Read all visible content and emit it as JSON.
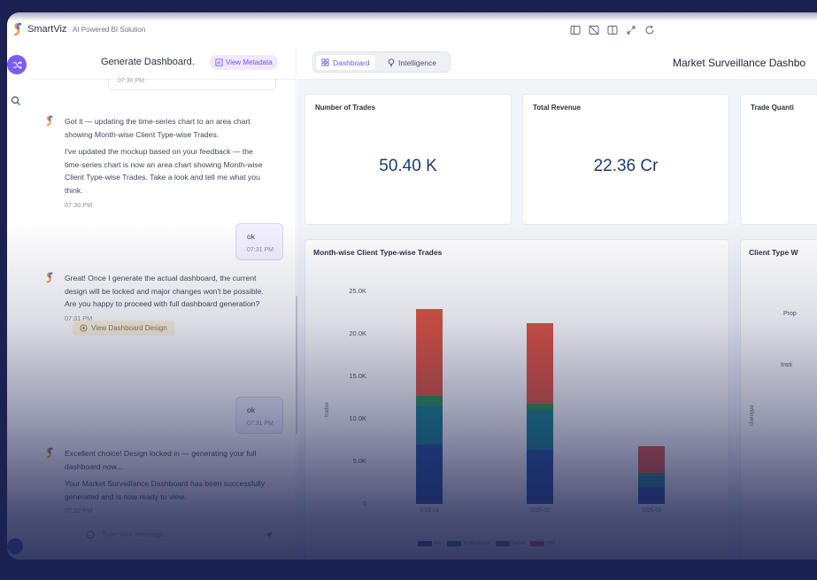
{
  "app": {
    "brand": "SmartViz",
    "tagline": "AI Powered BI Solution"
  },
  "window_icons": [
    "panel-left-icon",
    "panel-off-icon",
    "split-view-icon",
    "expand-icon",
    "refresh-icon"
  ],
  "chat": {
    "title": "Generate Dashboard.",
    "view_metadata_label": "View Metadata",
    "prev_time": "07:30 PM",
    "messages": {
      "m1_p1": "Got it — updating the time-series chart to an area chart showing Month-wise Client Type-wise Trades.",
      "m1_p2": "I've updated the mockup based on your feedback — the time-series chart is now an area chart showing Month-wise Client Type-wise Trades. Take a look and tell me what you think.",
      "m1_time": "07:30 PM",
      "u1_text": "ok",
      "u1_time": "07:31 PM",
      "m2_p1": "Great! Once I generate the actual dashboard, the current design will be locked and major changes won't be possible.",
      "m2_p2": "Are you happy to proceed with full dashboard generation?",
      "m2_time": "07:31 PM",
      "design_chip": "View Dashboard Design",
      "u2_text": "ok",
      "u2_time": "07:31 PM",
      "m3_p1": "Excellent choice! Design locked in — generating your full dashboard now...",
      "m3_p2": "Your Market Surveillance Dashboard has been successfully generated and is now ready to view.",
      "m3_time": "07:32 PM"
    },
    "input_placeholder": "Type your message..."
  },
  "main": {
    "tabs": {
      "dashboard": "Dashboard",
      "intelligence": "Intelligence"
    },
    "title": "Market Surveillance Dashbo",
    "kpis": {
      "trades_label": "Number of Trades",
      "trades_value": "50.40 K",
      "revenue_label": "Total Revenue",
      "revenue_value": "22.36 Cr",
      "quantity_label": "Trade Quanti"
    },
    "second_chart_title": "Client Type W",
    "second_chart_labels": [
      "Prop",
      "Insti"
    ],
    "second_chart_ylabel": "clientype"
  },
  "chart_data": {
    "type": "bar",
    "stacked": true,
    "title": "Month-wise Client Type-wise Trades",
    "ylabel": "trades",
    "ylim": [
      0,
      25000
    ],
    "yticks": [
      "0",
      "5.0K",
      "10.0K",
      "15.0K",
      "20.0K",
      "25.0K"
    ],
    "categories": [
      "2025-01",
      "2025-02",
      "2025-03"
    ],
    "series": [
      {
        "name": "Pro",
        "color": "#1f4e9c",
        "values": [
          7000,
          6400,
          2000
        ]
      },
      {
        "name": "Institutional",
        "color": "#16808f",
        "values": [
          4600,
          4500,
          1300
        ]
      },
      {
        "name": "Retail",
        "color": "#2f8f4e",
        "values": [
          1100,
          900,
          300
        ]
      },
      {
        "name": "HNI",
        "color": "#e0533f",
        "values": [
          10200,
          9400,
          3200
        ]
      }
    ]
  },
  "colors": {
    "accent": "#7c5cf0",
    "kpi_value": "#1e3a6e"
  }
}
